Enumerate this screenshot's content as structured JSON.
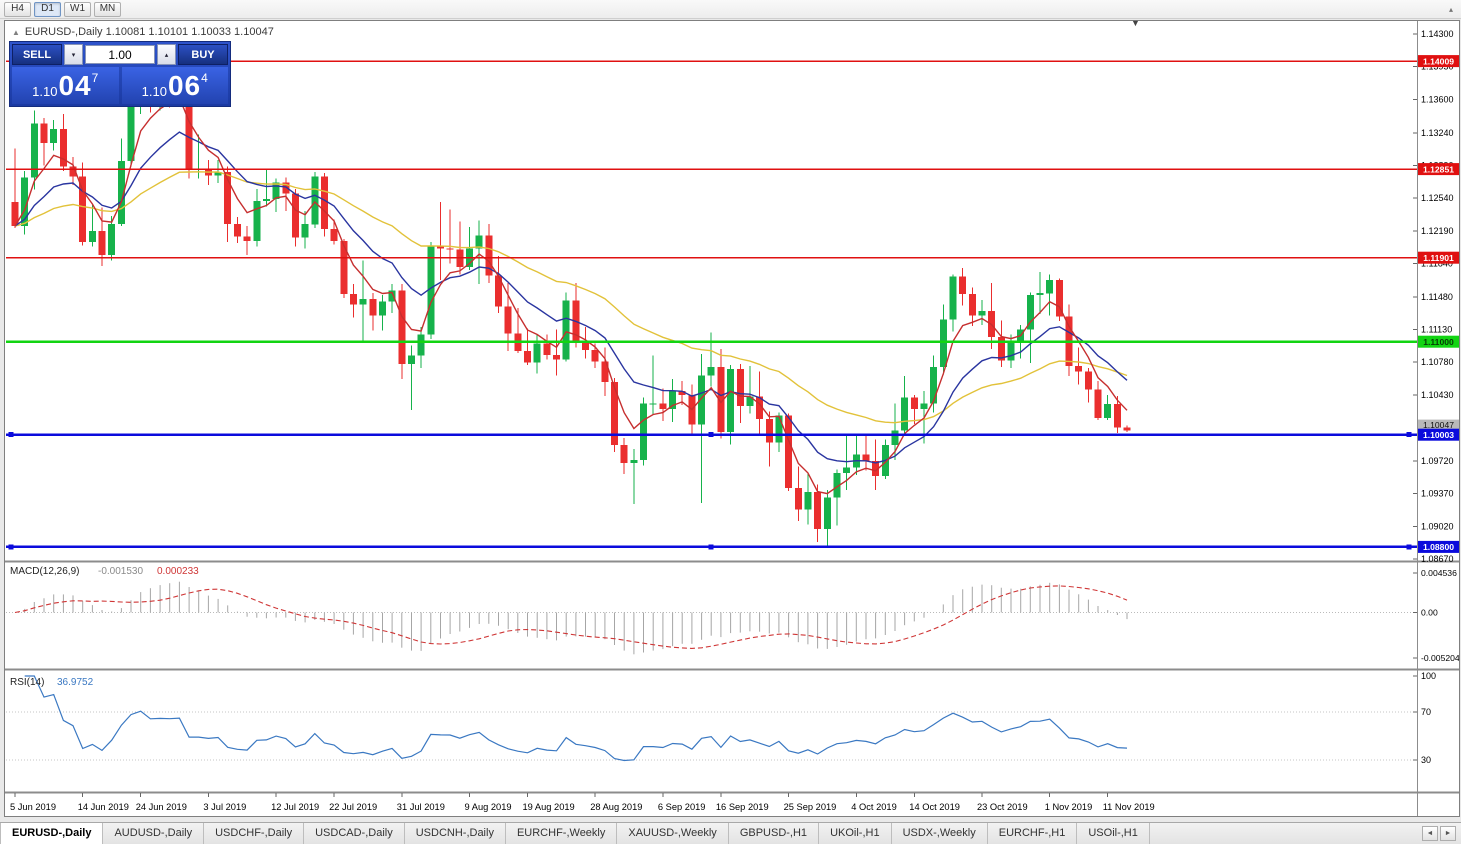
{
  "toolbar": {
    "timeframes": [
      {
        "label": "H4",
        "active": false
      },
      {
        "label": "D1",
        "active": true
      },
      {
        "label": "W1",
        "active": false
      },
      {
        "label": "MN",
        "active": false
      }
    ]
  },
  "icons": {
    "collapse_up": "▲",
    "small_down": "▼",
    "small_up": "▴",
    "spinner_down": "▾",
    "spinner_up": "▴",
    "scroll_left": "◄",
    "scroll_right": "►"
  },
  "chart": {
    "title": "EURUSD-,Daily 1.10081 1.10101 1.10033 1.10047"
  },
  "trade_panel": {
    "sell_label": "SELL",
    "buy_label": "BUY",
    "volume": "1.00",
    "bid": {
      "prefix": "1.10",
      "big": "04",
      "sup": "7"
    },
    "ask": {
      "prefix": "1.10",
      "big": "06",
      "sup": "4"
    }
  },
  "price_axis": {
    "labels": [
      "1.14300",
      "1.13950",
      "1.13600",
      "1.13240",
      "1.12890",
      "1.12540",
      "1.12190",
      "1.11840",
      "1.11480",
      "1.11130",
      "1.10780",
      "1.10430",
      "1.09720",
      "1.09370",
      "1.09020",
      "1.08670"
    ]
  },
  "current_price_badge": {
    "price": 1.10047,
    "label": "1.10047"
  },
  "hlines": [
    {
      "price": 1.14009,
      "label": "1.14009",
      "color": "#e01010",
      "text_color": "#ffffff",
      "width": 1.6,
      "selected": false
    },
    {
      "price": 1.12851,
      "label": "1.12851",
      "color": "#e01010",
      "text_color": "#ffffff",
      "width": 1.6,
      "selected": false
    },
    {
      "price": 1.11901,
      "label": "1.11901",
      "color": "#e01010",
      "text_color": "#ffffff",
      "width": 1.6,
      "selected": false
    },
    {
      "price": 1.11,
      "label": "1.11000",
      "color": "#12d412",
      "text_color": "#063b06",
      "width": 2.2,
      "selected": false
    },
    {
      "price": 1.10003,
      "label": "1.10003",
      "color": "#0b0bdc",
      "text_color": "#ffffff",
      "width": 2.6,
      "selected": true
    },
    {
      "price": 1.088,
      "label": "1.08800",
      "color": "#0b0bdc",
      "text_color": "#ffffff",
      "width": 2.6,
      "selected": true
    }
  ],
  "macd_panel": {
    "label": "MACD(12,26,9)",
    "value_main": "-0.001530",
    "value_signal": "0.000233",
    "axis": [
      "0.004536",
      "0.00",
      "-0.005204"
    ]
  },
  "rsi_panel": {
    "label": "RSI(14)",
    "value": "36.9752",
    "axis": [
      "100",
      "70",
      "30"
    ],
    "levels": [
      70,
      30
    ]
  },
  "time_axis": {
    "labels": [
      {
        "t": "5 Jun 2019",
        "i": 0
      },
      {
        "t": "14 Jun 2019",
        "i": 7
      },
      {
        "t": "24 Jun 2019",
        "i": 13
      },
      {
        "t": "3 Jul 2019",
        "i": 20
      },
      {
        "t": "12 Jul 2019",
        "i": 27
      },
      {
        "t": "22 Jul 2019",
        "i": 33
      },
      {
        "t": "31 Jul 2019",
        "i": 40
      },
      {
        "t": "9 Aug 2019",
        "i": 47
      },
      {
        "t": "19 Aug 2019",
        "i": 53
      },
      {
        "t": "28 Aug 2019",
        "i": 60
      },
      {
        "t": "6 Sep 2019",
        "i": 67
      },
      {
        "t": "16 Sep 2019",
        "i": 73
      },
      {
        "t": "25 Sep 2019",
        "i": 80
      },
      {
        "t": "4 Oct 2019",
        "i": 87
      },
      {
        "t": "14 Oct 2019",
        "i": 93
      },
      {
        "t": "23 Oct 2019",
        "i": 100
      },
      {
        "t": "1 Nov 2019",
        "i": 107
      },
      {
        "t": "11 Nov 2019",
        "i": 113
      }
    ]
  },
  "tabs": {
    "items": [
      {
        "label": "EURUSD-,Daily",
        "active": true
      },
      {
        "label": "AUDUSD-,Daily",
        "active": false
      },
      {
        "label": "USDCHF-,Daily",
        "active": false
      },
      {
        "label": "USDCAD-,Daily",
        "active": false
      },
      {
        "label": "USDCNH-,Daily",
        "active": false
      },
      {
        "label": "EURCHF-,Weekly",
        "active": false
      },
      {
        "label": "XAUUSD-,Weekly",
        "active": false
      },
      {
        "label": "GBPUSD-,H1",
        "active": false
      },
      {
        "label": "UKOil-,H1",
        "active": false
      },
      {
        "label": "USDX-,Weekly",
        "active": false
      },
      {
        "label": "EURCHF-,H1",
        "active": false
      },
      {
        "label": "USOil-,H1",
        "active": false
      }
    ]
  },
  "chart_data": {
    "type": "candlestick",
    "symbol": "EURUSD-",
    "timeframe": "Daily",
    "y_range": [
      1.0867,
      1.143
    ],
    "colors": {
      "up": "#16b24b",
      "down": "#ea2e2e"
    },
    "overlays": [
      {
        "name": "ma-slow-yellow",
        "type": "ema",
        "period": 34,
        "color": "#e2c23a",
        "width": 1.4
      },
      {
        "name": "ma-mid-blue",
        "type": "ema",
        "period": 13,
        "color": "#2a35a0",
        "width": 1.4
      },
      {
        "name": "ma-fast-red",
        "type": "ema",
        "period": 5,
        "color": "#c62f2f",
        "width": 1.4
      }
    ],
    "indicators": [
      {
        "name": "macd",
        "params": [
          12,
          26,
          9
        ]
      },
      {
        "name": "rsi",
        "params": [
          14
        ]
      }
    ],
    "ohlc": [
      [
        1.125,
        1.1307,
        1.1222,
        1.1224
      ],
      [
        1.1224,
        1.1283,
        1.1215,
        1.1276
      ],
      [
        1.1276,
        1.1348,
        1.1263,
        1.1334
      ],
      [
        1.1334,
        1.134,
        1.1289,
        1.1313
      ],
      [
        1.1313,
        1.1338,
        1.1305,
        1.1328
      ],
      [
        1.1328,
        1.1344,
        1.1283,
        1.1288
      ],
      [
        1.1288,
        1.1298,
        1.1268,
        1.1277
      ],
      [
        1.1277,
        1.1292,
        1.1203,
        1.1207
      ],
      [
        1.1207,
        1.1247,
        1.1202,
        1.1219
      ],
      [
        1.1219,
        1.1244,
        1.1181,
        1.1193
      ],
      [
        1.1193,
        1.1235,
        1.1187,
        1.1226
      ],
      [
        1.1226,
        1.1318,
        1.1224,
        1.1294
      ],
      [
        1.1294,
        1.1403,
        1.1288,
        1.1368
      ],
      [
        1.1368,
        1.1405,
        1.1344,
        1.1399
      ],
      [
        1.1399,
        1.1401,
        1.1346,
        1.1367
      ],
      [
        1.1367,
        1.139,
        1.1348,
        1.137
      ],
      [
        1.137,
        1.1391,
        1.1351,
        1.1369
      ],
      [
        1.1369,
        1.1412,
        1.1358,
        1.1373
      ],
      [
        1.1367,
        1.137,
        1.1275,
        1.1285
      ],
      [
        1.1285,
        1.1322,
        1.1275,
        1.1285
      ],
      [
        1.1285,
        1.1295,
        1.1268,
        1.1278
      ],
      [
        1.1278,
        1.1295,
        1.127,
        1.1282
      ],
      [
        1.1282,
        1.1288,
        1.1207,
        1.1226
      ],
      [
        1.1226,
        1.1234,
        1.1206,
        1.1213
      ],
      [
        1.1213,
        1.1224,
        1.1193,
        1.1208
      ],
      [
        1.1208,
        1.1264,
        1.1202,
        1.1251
      ],
      [
        1.1251,
        1.1285,
        1.1245,
        1.1253
      ],
      [
        1.1253,
        1.1275,
        1.1239,
        1.1271
      ],
      [
        1.1271,
        1.1276,
        1.124,
        1.1259
      ],
      [
        1.1259,
        1.1264,
        1.1202,
        1.1212
      ],
      [
        1.1212,
        1.124,
        1.12,
        1.1226
      ],
      [
        1.1226,
        1.1282,
        1.1222,
        1.1277
      ],
      [
        1.1277,
        1.1281,
        1.1213,
        1.1221
      ],
      [
        1.1221,
        1.1231,
        1.1204,
        1.1208
      ],
      [
        1.1208,
        1.121,
        1.1147,
        1.1151
      ],
      [
        1.1151,
        1.1162,
        1.1126,
        1.114
      ],
      [
        1.114,
        1.1187,
        1.1101,
        1.1146
      ],
      [
        1.1146,
        1.1152,
        1.1112,
        1.1128
      ],
      [
        1.1128,
        1.115,
        1.1112,
        1.1143
      ],
      [
        1.1143,
        1.1162,
        1.1131,
        1.1155
      ],
      [
        1.1155,
        1.1162,
        1.106,
        1.1076
      ],
      [
        1.1076,
        1.1096,
        1.1027,
        1.1085
      ],
      [
        1.1085,
        1.1116,
        1.1072,
        1.1108
      ],
      [
        1.1108,
        1.1207,
        1.1103,
        1.1203
      ],
      [
        1.1203,
        1.125,
        1.1166,
        1.12
      ],
      [
        1.12,
        1.1242,
        1.1184,
        1.1199
      ],
      [
        1.1199,
        1.1229,
        1.1172,
        1.118
      ],
      [
        1.118,
        1.1223,
        1.1177,
        1.12
      ],
      [
        1.12,
        1.123,
        1.1162,
        1.1214
      ],
      [
        1.1214,
        1.1226,
        1.1163,
        1.1171
      ],
      [
        1.1171,
        1.1192,
        1.1131,
        1.1138
      ],
      [
        1.1138,
        1.1163,
        1.109,
        1.1109
      ],
      [
        1.1109,
        1.1136,
        1.1088,
        1.109
      ],
      [
        1.109,
        1.1114,
        1.1075,
        1.1078
      ],
      [
        1.1078,
        1.1107,
        1.1066,
        1.1098
      ],
      [
        1.1098,
        1.1108,
        1.1081,
        1.1086
      ],
      [
        1.1086,
        1.1113,
        1.1064,
        1.1081
      ],
      [
        1.1081,
        1.1153,
        1.1079,
        1.1144
      ],
      [
        1.1144,
        1.1163,
        1.1094,
        1.1101
      ],
      [
        1.1101,
        1.1116,
        1.1082,
        1.1091
      ],
      [
        1.1091,
        1.1098,
        1.1072,
        1.1079
      ],
      [
        1.1079,
        1.1094,
        1.1042,
        1.1057
      ],
      [
        1.1057,
        1.1061,
        1.0982,
        1.0989
      ],
      [
        1.0989,
        1.0997,
        1.0958,
        1.097
      ],
      [
        1.097,
        1.0985,
        1.0926,
        1.0973
      ],
      [
        1.0973,
        1.104,
        1.0967,
        1.1034
      ],
      [
        1.1034,
        1.1085,
        1.1022,
        1.1034
      ],
      [
        1.1034,
        1.105,
        1.1015,
        1.1028
      ],
      [
        1.1028,
        1.106,
        1.1014,
        1.1047
      ],
      [
        1.1047,
        1.1058,
        1.1032,
        1.1043
      ],
      [
        1.1043,
        1.1054,
        1.1,
        1.1011
      ],
      [
        1.1011,
        1.1087,
        1.0927,
        1.1064
      ],
      [
        1.1064,
        1.111,
        1.1052,
        1.1073
      ],
      [
        1.1073,
        1.1092,
        1.0996,
        1.1003
      ],
      [
        1.1003,
        1.1075,
        1.099,
        1.1071
      ],
      [
        1.1071,
        1.1076,
        1.1013,
        1.1031
      ],
      [
        1.1031,
        1.1074,
        1.1023,
        1.1041
      ],
      [
        1.1041,
        1.1068,
        1.0999,
        1.1017
      ],
      [
        1.1017,
        1.1025,
        1.0966,
        1.0992
      ],
      [
        1.0992,
        1.1024,
        1.0982,
        1.1021
      ],
      [
        1.1021,
        1.1023,
        1.094,
        1.0943
      ],
      [
        1.0943,
        1.0966,
        1.0908,
        1.092
      ],
      [
        1.092,
        1.0958,
        1.0904,
        1.0939
      ],
      [
        1.0939,
        1.0947,
        1.0885,
        1.0899
      ],
      [
        1.0899,
        1.0941,
        1.0879,
        1.0933
      ],
      [
        1.0933,
        1.0963,
        1.0903,
        1.0959
      ],
      [
        1.0959,
        1.0999,
        1.0941,
        1.0965
      ],
      [
        1.0965,
        1.0999,
        1.0957,
        1.0979
      ],
      [
        1.0979,
        1.1,
        1.0962,
        1.0972
      ],
      [
        1.0972,
        1.0995,
        1.0941,
        1.0956
      ],
      [
        1.0956,
        1.0995,
        1.0953,
        1.0989
      ],
      [
        1.0989,
        1.1034,
        1.0973,
        1.1005
      ],
      [
        1.1005,
        1.1063,
        1.1002,
        1.104
      ],
      [
        1.104,
        1.1043,
        1.1012,
        1.1028
      ],
      [
        1.1028,
        1.1047,
        1.0991,
        1.1034
      ],
      [
        1.1034,
        1.1085,
        1.1024,
        1.1073
      ],
      [
        1.1073,
        1.114,
        1.1065,
        1.1124
      ],
      [
        1.1124,
        1.1172,
        1.1111,
        1.117
      ],
      [
        1.117,
        1.1179,
        1.1139,
        1.1151
      ],
      [
        1.1151,
        1.1158,
        1.1117,
        1.1128
      ],
      [
        1.1128,
        1.1145,
        1.1118,
        1.1133
      ],
      [
        1.1133,
        1.1163,
        1.1092,
        1.1105
      ],
      [
        1.1105,
        1.1123,
        1.1073,
        1.108
      ],
      [
        1.108,
        1.1108,
        1.1072,
        1.1099
      ],
      [
        1.1099,
        1.1118,
        1.1082,
        1.1113
      ],
      [
        1.1113,
        1.1153,
        1.1077,
        1.115
      ],
      [
        1.115,
        1.1175,
        1.113,
        1.1152
      ],
      [
        1.1152,
        1.1172,
        1.1128,
        1.1166
      ],
      [
        1.1166,
        1.1168,
        1.1122,
        1.1127
      ],
      [
        1.1127,
        1.114,
        1.1063,
        1.1074
      ],
      [
        1.1074,
        1.1094,
        1.1054,
        1.1068
      ],
      [
        1.1068,
        1.1072,
        1.1035,
        1.1049
      ],
      [
        1.1049,
        1.1058,
        1.1016,
        1.1018
      ],
      [
        1.1018,
        1.1043,
        1.1016,
        1.1033
      ],
      [
        1.1033,
        1.1042,
        1.1002,
        1.1008
      ],
      [
        1.10081,
        1.10101,
        1.10033,
        1.10047
      ]
    ]
  }
}
